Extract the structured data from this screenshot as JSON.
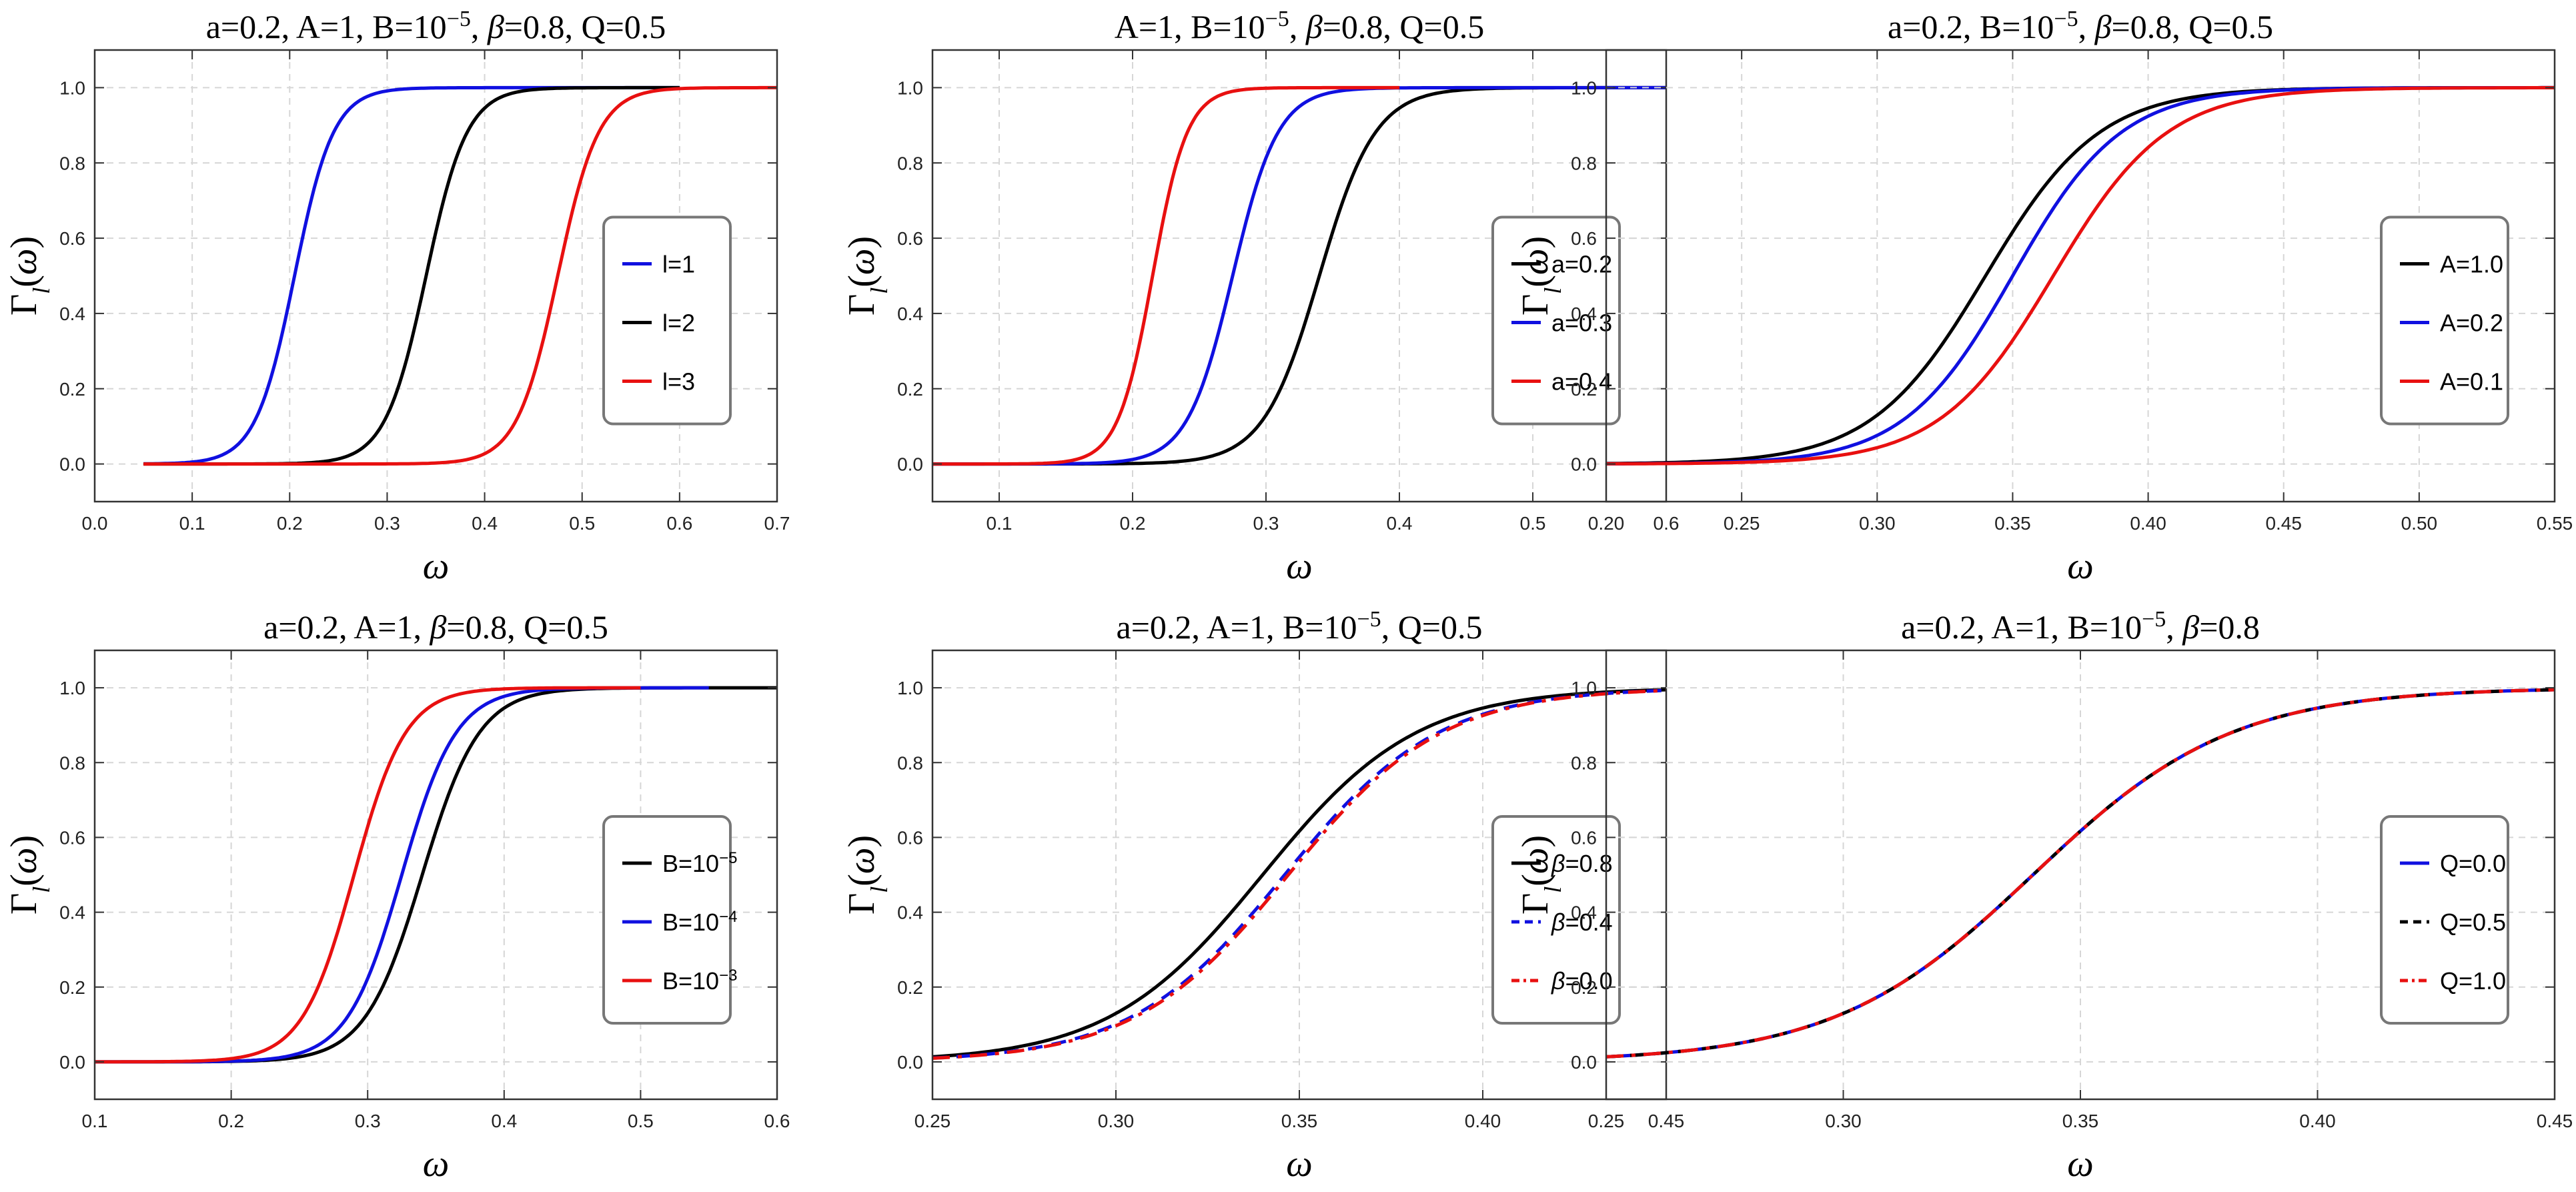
{
  "colors": {
    "blue": "#1010e0",
    "black": "#000000",
    "red": "#e81010"
  },
  "chart_data": [
    {
      "type": "line",
      "title": "a=0.2, A=1, B=10^-5, β=0.8, Q=0.5",
      "title_parts": [
        "a=0.2, A=1, B=10",
        "−5",
        ", ",
        "β",
        "=0.8, Q=0.5"
      ],
      "xlabel": "ω",
      "ylabel": "Γl(ω)",
      "xlim": [
        0.0,
        0.7
      ],
      "ylim": [
        -0.1,
        1.1
      ],
      "xticks": [
        "0.0",
        "0.1",
        "0.2",
        "0.3",
        "0.4",
        "0.5",
        "0.6",
        "0.7"
      ],
      "yticks": [
        "0.0",
        "0.2",
        "0.4",
        "0.6",
        "0.8",
        "1.0"
      ],
      "legend_position": "center-right",
      "series": [
        {
          "name": "l=1",
          "color": "blue",
          "dash": "solid",
          "x0": 0.05,
          "x1": 0.6,
          "center": 0.205,
          "scale": 0.02
        },
        {
          "name": "l=2",
          "color": "black",
          "dash": "solid",
          "x0": 0.05,
          "x1": 0.6,
          "center": 0.34,
          "scale": 0.021
        },
        {
          "name": "l=3",
          "color": "red",
          "dash": "solid",
          "x0": 0.05,
          "x1": 0.7,
          "center": 0.475,
          "scale": 0.021
        }
      ]
    },
    {
      "type": "line",
      "title": "A=1, B=10^-5, β=0.8, Q=0.5",
      "title_parts": [
        "A=1, B=10",
        "−5",
        ", ",
        "β",
        "=0.8, Q=0.5"
      ],
      "xlabel": "ω",
      "ylabel": "Γl(ω)",
      "xlim": [
        0.05,
        0.6
      ],
      "ylim": [
        -0.1,
        1.1
      ],
      "xticks": [
        "0.1",
        "0.2",
        "0.3",
        "0.4",
        "0.5",
        "0.6"
      ],
      "yticks": [
        "0.0",
        "0.2",
        "0.4",
        "0.6",
        "0.8",
        "1.0"
      ],
      "legend_position": "center-right",
      "series": [
        {
          "name": "a=0.2",
          "color": "black",
          "dash": "solid",
          "x0": 0.05,
          "x1": 0.6,
          "center": 0.34,
          "scale": 0.021
        },
        {
          "name": "a=0.3",
          "color": "blue",
          "dash": "solid",
          "x0": 0.05,
          "x1": 0.6,
          "center": 0.275,
          "scale": 0.017
        },
        {
          "name": "a=0.4",
          "color": "red",
          "dash": "solid",
          "x0": 0.05,
          "x1": 0.4,
          "center": 0.215,
          "scale": 0.013
        }
      ]
    },
    {
      "type": "line",
      "title": "a=0.2, B=10^-5, β=0.8, Q=0.5",
      "title_parts": [
        "a=0.2, B=10",
        "−5",
        ", ",
        "β",
        "=0.8, Q=0.5"
      ],
      "xlabel": "ω",
      "ylabel": "Γl(ω)",
      "xlim": [
        0.2,
        0.55
      ],
      "ylim": [
        -0.1,
        1.1
      ],
      "xticks": [
        "0.20",
        "0.25",
        "0.30",
        "0.35",
        "0.40",
        "0.45",
        "0.50",
        "0.55"
      ],
      "yticks": [
        "0.0",
        "0.2",
        "0.4",
        "0.6",
        "0.8",
        "1.0"
      ],
      "legend_position": "center-right",
      "series": [
        {
          "name": "A=1.0",
          "color": "black",
          "dash": "solid",
          "x0": 0.2,
          "x1": 0.55,
          "center": 0.34,
          "scale": 0.021
        },
        {
          "name": "A=0.2",
          "color": "blue",
          "dash": "solid",
          "x0": 0.2,
          "x1": 0.55,
          "center": 0.35,
          "scale": 0.02
        },
        {
          "name": "A=0.1",
          "color": "red",
          "dash": "solid",
          "x0": 0.2,
          "x1": 0.55,
          "center": 0.365,
          "scale": 0.021
        }
      ]
    },
    {
      "type": "line",
      "title": "a=0.2, A=1, β=0.8, Q=0.5",
      "title_parts": [
        "a=0.2, A=1, ",
        "",
        "",
        "β",
        "=0.8, Q=0.5"
      ],
      "xlabel": "ω",
      "ylabel": "Γl(ω)",
      "xlim": [
        0.1,
        0.6
      ],
      "ylim": [
        -0.1,
        1.1
      ],
      "xticks": [
        "0.1",
        "0.2",
        "0.3",
        "0.4",
        "0.5",
        "0.6"
      ],
      "yticks": [
        "0.0",
        "0.2",
        "0.4",
        "0.6",
        "0.8",
        "1.0"
      ],
      "legend_position": "center-right",
      "series": [
        {
          "name": "B=10^-5",
          "label_base": "B=10",
          "label_sup": "−5",
          "color": "black",
          "dash": "solid",
          "x0": 0.1,
          "x1": 0.6,
          "center": 0.34,
          "scale": 0.021
        },
        {
          "name": "B=10^-4",
          "label_base": "B=10",
          "label_sup": "−4",
          "color": "blue",
          "dash": "solid",
          "x0": 0.1,
          "x1": 0.55,
          "center": 0.325,
          "scale": 0.02
        },
        {
          "name": "B=10^-3",
          "label_base": "B=10",
          "label_sup": "−3",
          "color": "red",
          "dash": "solid",
          "x0": 0.1,
          "x1": 0.5,
          "center": 0.29,
          "scale": 0.019
        }
      ]
    },
    {
      "type": "line",
      "title": "a=0.2, A=1, B=10^-5, Q=0.5",
      "title_parts": [
        "a=0.2, A=1, B=10",
        "−5",
        ", Q=0.5",
        "",
        ""
      ],
      "xlabel": "ω",
      "ylabel": "Γl(ω)",
      "xlim": [
        0.25,
        0.45
      ],
      "ylim": [
        -0.1,
        1.1
      ],
      "xticks": [
        "0.25",
        "0.30",
        "0.35",
        "0.40",
        "0.45"
      ],
      "yticks": [
        "0.0",
        "0.2",
        "0.4",
        "0.6",
        "0.8",
        "1.0"
      ],
      "legend_position": "center-right",
      "series": [
        {
          "name": "β=0.8",
          "label_base": "β",
          "label_rest": "=0.8",
          "color": "black",
          "dash": "solid",
          "x0": 0.25,
          "x1": 0.45,
          "center": 0.34,
          "scale": 0.021
        },
        {
          "name": "β=0.4",
          "label_base": "β",
          "label_rest": "=0.4",
          "color": "blue",
          "dash": "dashed",
          "x0": 0.25,
          "x1": 0.45,
          "center": 0.346,
          "scale": 0.021
        },
        {
          "name": "β=0.0",
          "label_base": "β",
          "label_rest": "=0.0",
          "color": "red",
          "dash": "dashdot",
          "x0": 0.25,
          "x1": 0.45,
          "center": 0.347,
          "scale": 0.021
        }
      ]
    },
    {
      "type": "line",
      "title": "a=0.2, A=1, B=10^-5, β=0.8",
      "title_parts": [
        "a=0.2, A=1, B=10",
        "−5",
        ", ",
        "β",
        "=0.8"
      ],
      "xlabel": "ω",
      "ylabel": "Γl(ω)",
      "xlim": [
        0.25,
        0.45
      ],
      "ylim": [
        -0.1,
        1.1
      ],
      "xticks": [
        "0.25",
        "0.30",
        "0.35",
        "0.40",
        "0.45"
      ],
      "yticks": [
        "0.0",
        "0.2",
        "0.4",
        "0.6",
        "0.8",
        "1.0"
      ],
      "legend_position": "center-right",
      "series": [
        {
          "name": "Q=0.0",
          "color": "blue",
          "dash": "solid",
          "x0": 0.25,
          "x1": 0.45,
          "center": 0.34,
          "scale": 0.021
        },
        {
          "name": "Q=0.5",
          "color": "black",
          "dash": "dashed",
          "x0": 0.25,
          "x1": 0.45,
          "center": 0.34,
          "scale": 0.021
        },
        {
          "name": "Q=1.0",
          "color": "red",
          "dash": "dashdot",
          "x0": 0.25,
          "x1": 0.45,
          "center": 0.34,
          "scale": 0.021
        }
      ]
    }
  ]
}
